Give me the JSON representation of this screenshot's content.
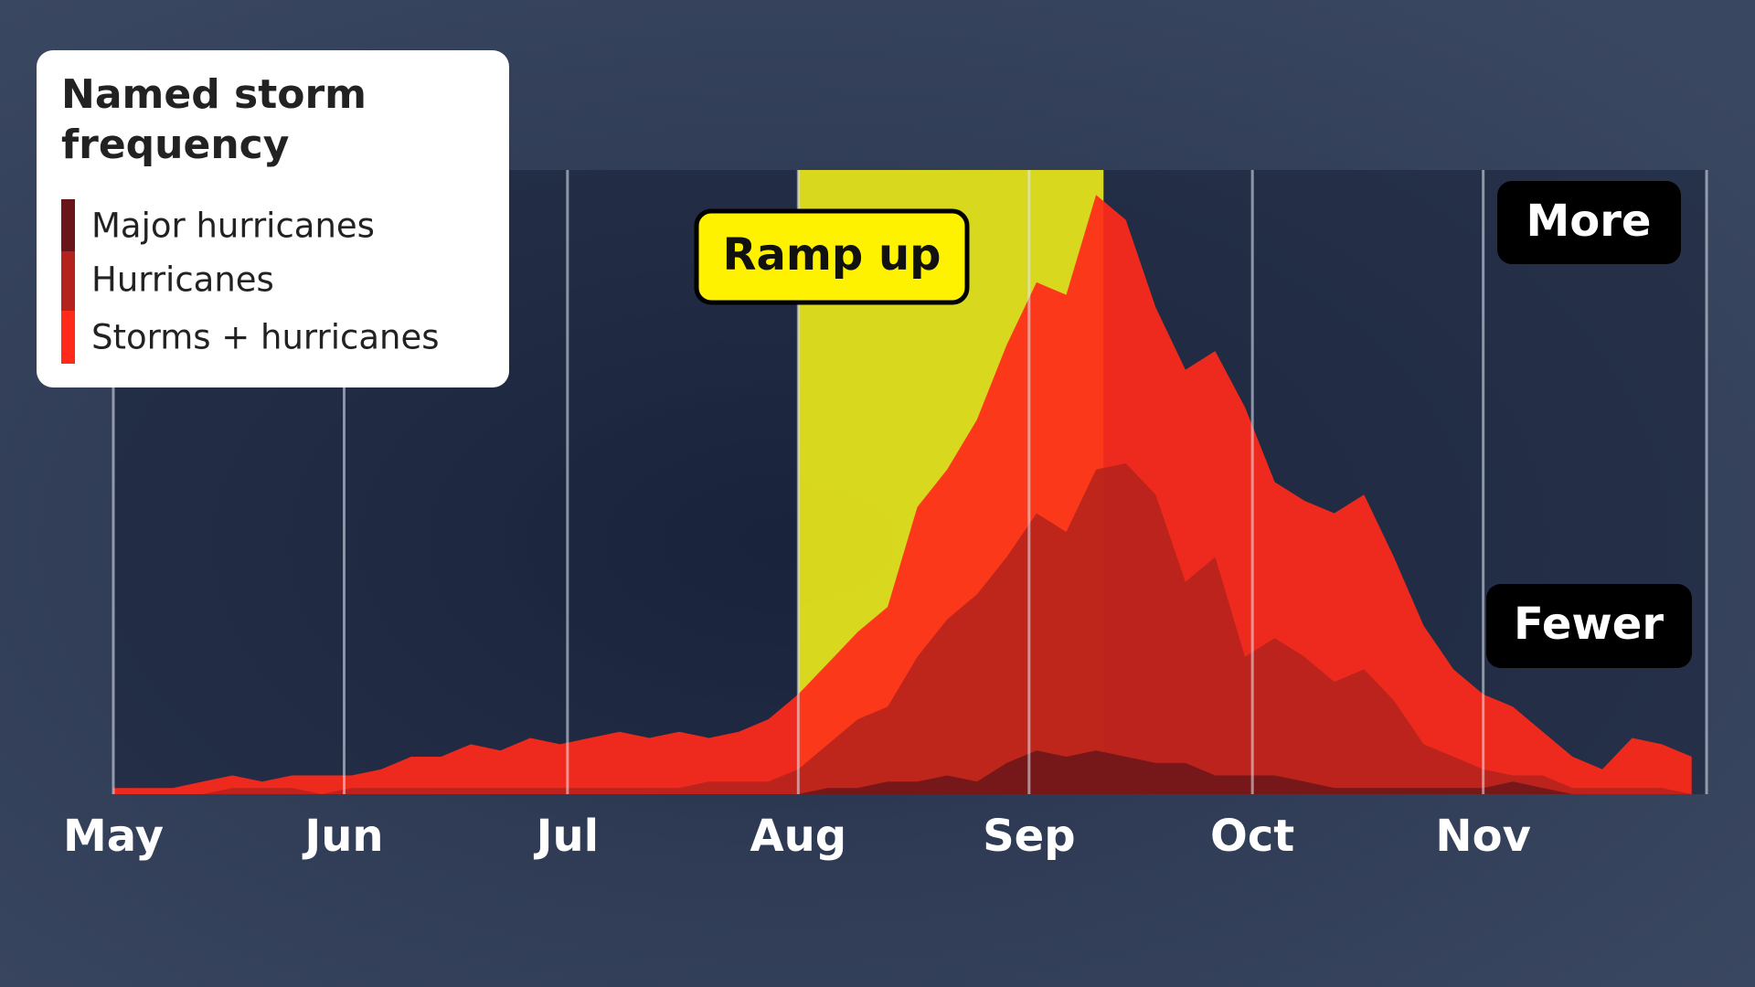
{
  "chart_data": {
    "type": "area",
    "title": "Named storm frequency",
    "x": [
      0,
      4,
      8,
      12,
      16,
      20,
      24,
      28,
      32,
      36,
      40,
      44,
      48,
      52,
      56,
      60,
      64,
      68,
      72,
      76,
      80,
      84,
      88,
      92,
      96,
      100,
      104,
      108,
      112,
      116,
      120,
      124,
      128,
      132,
      136,
      140,
      144,
      148,
      152,
      156,
      160,
      164,
      168,
      172,
      176,
      180,
      184,
      188,
      192,
      196,
      200,
      204,
      208,
      212
    ],
    "xlim": [
      0,
      214
    ],
    "xticks": [
      {
        "value": 0,
        "label": "May"
      },
      {
        "value": 31,
        "label": "Jun"
      },
      {
        "value": 61,
        "label": "Jul"
      },
      {
        "value": 92,
        "label": "Aug"
      },
      {
        "value": 123,
        "label": "Sep"
      },
      {
        "value": 153,
        "label": "Oct"
      },
      {
        "value": 184,
        "label": "Nov"
      }
    ],
    "ylim": [
      0,
      100
    ],
    "series": [
      {
        "name": "Major hurricanes",
        "color": "#6a1519",
        "values": [
          0,
          0,
          0,
          0,
          0,
          0,
          0,
          0,
          0,
          0,
          0,
          0,
          0,
          0,
          0,
          0,
          0,
          0,
          0,
          0,
          0,
          0,
          0,
          0,
          1,
          1,
          2,
          2,
          3,
          2,
          5,
          7,
          6,
          7,
          6,
          5,
          5,
          3,
          3,
          3,
          2,
          1,
          1,
          1,
          1,
          1,
          1,
          2,
          1,
          0,
          0,
          0,
          0,
          0
        ]
      },
      {
        "name": "Hurricanes",
        "color": "#b3221c",
        "values": [
          0,
          0,
          0,
          0,
          1,
          1,
          1,
          0,
          1,
          1,
          1,
          1,
          1,
          1,
          1,
          1,
          1,
          1,
          1,
          1,
          2,
          2,
          2,
          4,
          8,
          12,
          14,
          22,
          28,
          32,
          38,
          45,
          42,
          52,
          53,
          48,
          34,
          38,
          22,
          25,
          22,
          18,
          20,
          15,
          8,
          6,
          4,
          3,
          3,
          1,
          1,
          1,
          1,
          0
        ]
      },
      {
        "name": "Storms + hurricanes",
        "color": "#ff2a1a",
        "values": [
          1,
          1,
          1,
          2,
          3,
          2,
          3,
          3,
          3,
          4,
          6,
          6,
          8,
          7,
          9,
          8,
          9,
          10,
          9,
          10,
          9,
          10,
          12,
          16,
          21,
          26,
          30,
          46,
          52,
          60,
          72,
          82,
          80,
          96,
          92,
          78,
          68,
          71,
          62,
          50,
          47,
          45,
          48,
          38,
          27,
          20,
          16,
          14,
          10,
          6,
          4,
          9,
          8,
          6
        ]
      }
    ],
    "highlight": {
      "range": [
        92,
        133
      ],
      "label": "Ramp up",
      "color": "#e3e21c"
    },
    "annotations": [
      "More",
      "Fewer"
    ]
  }
}
